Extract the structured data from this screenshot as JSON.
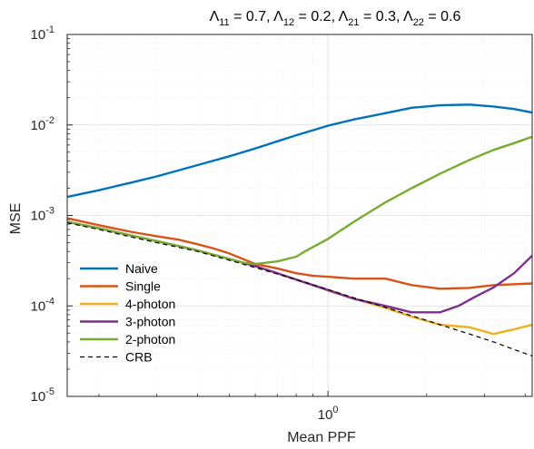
{
  "chart_data": {
    "type": "line",
    "title_parts": [
      {
        "sym": "Λ",
        "sub": "11",
        "text": " = 0.7, "
      },
      {
        "sym": "Λ",
        "sub": "12",
        "text": " = 0.2, "
      },
      {
        "sym": "Λ",
        "sub": "21",
        "text": " = 0.3, "
      },
      {
        "sym": "Λ",
        "sub": "22",
        "text": " = 0.6"
      }
    ],
    "xlabel": "Mean PPF",
    "ylabel": "MSE",
    "xscale": "log",
    "yscale": "log",
    "xlim": [
      0.16,
      4.2
    ],
    "ylim": [
      1e-05,
      0.1
    ],
    "grid": true,
    "legend_position": "lower-left",
    "x_ticks": [
      {
        "value": 1,
        "base": "10",
        "exp": "0"
      }
    ],
    "y_ticks": [
      {
        "value": 0.1,
        "base": "10",
        "exp": "-1"
      },
      {
        "value": 0.01,
        "base": "10",
        "exp": "-2"
      },
      {
        "value": 0.001,
        "base": "10",
        "exp": "-3"
      },
      {
        "value": 0.0001,
        "base": "10",
        "exp": "-4"
      },
      {
        "value": 1e-05,
        "base": "10",
        "exp": "-5"
      }
    ],
    "series": [
      {
        "name": "Naive",
        "color": "#0072BD",
        "dash": "",
        "x": [
          0.16,
          0.2,
          0.25,
          0.3,
          0.4,
          0.5,
          0.6,
          0.7,
          0.8,
          1.0,
          1.2,
          1.5,
          1.8,
          2.2,
          2.7,
          3.2,
          3.7,
          4.2
        ],
        "y": [
          0.0016,
          0.0019,
          0.0023,
          0.0027,
          0.0036,
          0.0045,
          0.0055,
          0.0066,
          0.0077,
          0.0098,
          0.0115,
          0.0135,
          0.0155,
          0.0165,
          0.0168,
          0.016,
          0.015,
          0.0137
        ]
      },
      {
        "name": "Single",
        "color": "#D95319",
        "dash": "",
        "x": [
          0.16,
          0.2,
          0.25,
          0.3,
          0.35,
          0.4,
          0.45,
          0.5,
          0.55,
          0.6,
          0.7,
          0.8,
          0.9,
          1.0,
          1.2,
          1.5,
          1.8,
          2.2,
          2.7,
          3.2,
          4.2
        ],
        "y": [
          0.00093,
          0.00078,
          0.00066,
          0.00059,
          0.00054,
          0.00048,
          0.00043,
          0.00038,
          0.00033,
          0.00029,
          0.00026,
          0.00023,
          0.000215,
          0.00021,
          0.0002,
          0.0002,
          0.00017,
          0.000155,
          0.000158,
          0.00017,
          0.000177
        ]
      },
      {
        "name": "4-photon",
        "color": "#EDB120",
        "dash": "",
        "x": [
          0.16,
          0.2,
          0.25,
          0.3,
          0.4,
          0.5,
          0.6,
          0.7,
          0.8,
          0.9,
          1.0,
          1.2,
          1.5,
          1.8,
          2.2,
          2.7,
          3.2,
          3.7,
          4.2
        ],
        "y": [
          0.00085,
          0.00072,
          0.0006,
          0.00052,
          0.00041,
          0.00033,
          0.000275,
          0.00023,
          0.000195,
          0.00017,
          0.000148,
          0.00012,
          9.5e-05,
          7.6e-05,
          6.2e-05,
          5.8e-05,
          4.9e-05,
          5.5e-05,
          6.2e-05
        ]
      },
      {
        "name": "3-photon",
        "color": "#7E2F8E",
        "dash": "",
        "x": [
          0.16,
          0.2,
          0.25,
          0.3,
          0.4,
          0.5,
          0.6,
          0.7,
          0.8,
          0.9,
          1.0,
          1.2,
          1.5,
          1.8,
          2.2,
          2.5,
          2.8,
          3.2,
          3.7,
          4.2
        ],
        "y": [
          0.00085,
          0.00072,
          0.0006,
          0.00052,
          0.00041,
          0.00033,
          0.000275,
          0.00023,
          0.000195,
          0.00017,
          0.00015,
          0.00012,
          0.0001,
          8.5e-05,
          8.5e-05,
          0.0001,
          0.000125,
          0.00016,
          0.00023,
          0.00036
        ]
      },
      {
        "name": "2-photon",
        "color": "#77AC30",
        "dash": "",
        "x": [
          0.16,
          0.2,
          0.25,
          0.3,
          0.4,
          0.5,
          0.55,
          0.6,
          0.7,
          0.8,
          0.85,
          1.0,
          1.2,
          1.5,
          1.8,
          2.2,
          2.7,
          3.2,
          3.7,
          4.2
        ],
        "y": [
          0.00085,
          0.00072,
          0.0006,
          0.00052,
          0.00041,
          0.00033,
          0.0003,
          0.00029,
          0.00031,
          0.00035,
          0.0004,
          0.00055,
          0.00085,
          0.0014,
          0.002,
          0.0029,
          0.0041,
          0.0053,
          0.0063,
          0.0074
        ]
      },
      {
        "name": "CRB",
        "color": "#000000",
        "dash": "5,4",
        "x": [
          0.16,
          0.2,
          0.25,
          0.3,
          0.4,
          0.5,
          0.6,
          0.7,
          0.8,
          1.0,
          1.2,
          1.5,
          1.8,
          2.2,
          2.7,
          3.2,
          3.7,
          4.2
        ],
        "y": [
          0.00083,
          0.0007,
          0.00058,
          0.0005,
          0.0004,
          0.00032,
          0.000265,
          0.000225,
          0.000195,
          0.000152,
          0.000123,
          9.6e-05,
          7.8e-05,
          6.2e-05,
          4.9e-05,
          4e-05,
          3.3e-05,
          2.8e-05
        ]
      }
    ]
  }
}
